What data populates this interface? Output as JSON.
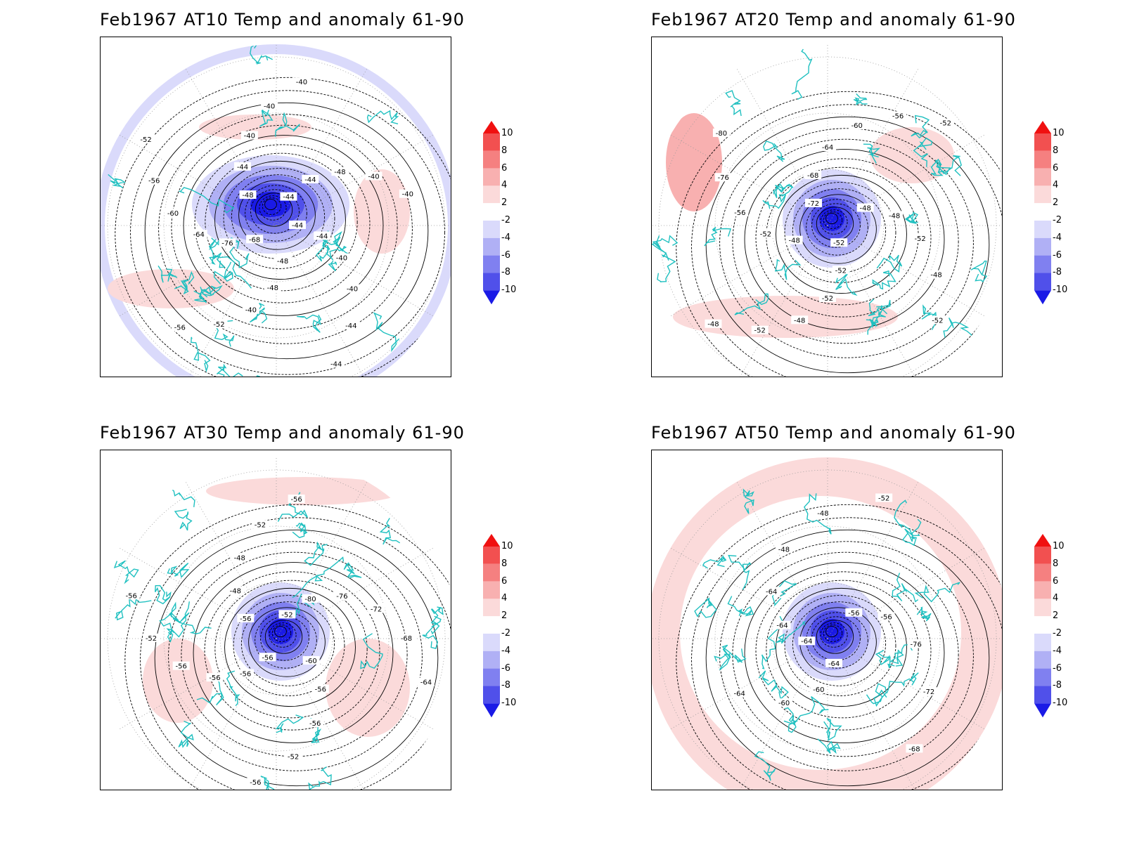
{
  "panels": [
    {
      "title": "Feb1967 AT10 Temp and anomaly 61-90",
      "pole_anomaly": "neg",
      "contour_labels": [
        "-44",
        "-44",
        "-40",
        "-40",
        "-44",
        "-44",
        "-48",
        "-48",
        "-40",
        "-52",
        "-56",
        "-68",
        "-76",
        "-64",
        "-60",
        "-56",
        "-52",
        "-48",
        "-44",
        "-40",
        "-40",
        "-40",
        "-44",
        "-44",
        "-48",
        "-40",
        "-40"
      ]
    },
    {
      "title": "Feb1967 AT20 Temp and anomaly 61-90",
      "pole_anomaly": "neg",
      "contour_labels": [
        "-52",
        "-52",
        "-52",
        "-48",
        "-52",
        "-48",
        "-48",
        "-52",
        "-56",
        "-76",
        "-80",
        "-72",
        "-68",
        "-64",
        "-60",
        "-56",
        "-52",
        "-48",
        "-48",
        "-52",
        "-48",
        "-52"
      ]
    },
    {
      "title": "Feb1967 AT30 Temp and anomaly 61-90",
      "pole_anomaly": "neg",
      "contour_labels": [
        "-56",
        "-56",
        "-56",
        "-56",
        "-52",
        "-56",
        "-56",
        "-48",
        "-48",
        "-52",
        "-56",
        "-52",
        "-80",
        "-76",
        "-72",
        "-68",
        "-64",
        "-60",
        "-56",
        "-56",
        "-52",
        "-56"
      ]
    },
    {
      "title": "Feb1967 AT50 Temp and anomaly 61-90",
      "pole_anomaly": "neg",
      "contour_labels": [
        "-64",
        "-64",
        "-64",
        "-48",
        "-48",
        "-52",
        "-56",
        "-56",
        "-76",
        "-72",
        "-68",
        "-64",
        "-60",
        "-60",
        "-64"
      ]
    }
  ],
  "colorbar": {
    "labels": [
      "10",
      "8",
      "6",
      "4",
      "2",
      "-2",
      "-4",
      "-6",
      "-8",
      "-10"
    ],
    "colors": [
      "#f01010",
      "#f25050",
      "#f58080",
      "#f8b0b0",
      "#fbdada",
      "#ffffff",
      "#dadafb",
      "#b0b0f5",
      "#8080f0",
      "#5050ea",
      "#1a1ae6"
    ]
  },
  "coastline_color": "#20c0c0"
}
